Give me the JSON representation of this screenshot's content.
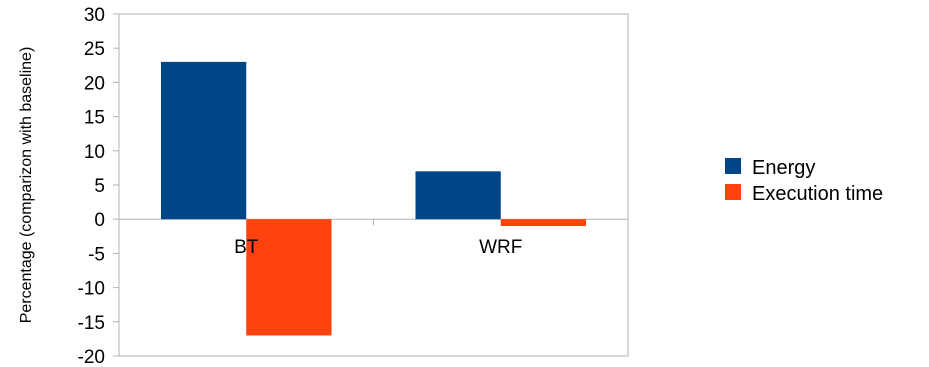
{
  "chart_data": {
    "type": "bar",
    "categories": [
      "BT",
      "WRF"
    ],
    "series": [
      {
        "name": "Energy",
        "values": [
          23,
          7
        ],
        "color": "#004586"
      },
      {
        "name": "Execution time",
        "values": [
          -17,
          -1
        ],
        "color": "#ff420e"
      }
    ],
    "xlabel": "",
    "ylabel": "Percentage (comparizon with baseline)",
    "ylim": [
      -20,
      30
    ],
    "yticks": [
      30,
      25,
      20,
      15,
      10,
      5,
      0,
      -5,
      -10,
      -15,
      -20
    ],
    "grid": false,
    "legend_position": "right"
  }
}
